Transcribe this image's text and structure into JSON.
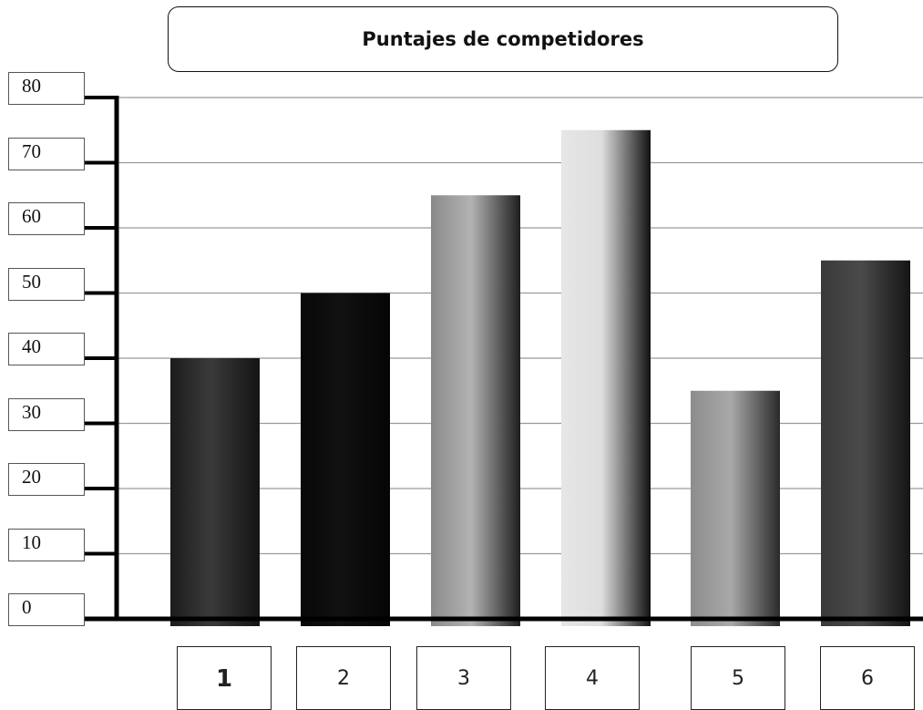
{
  "chart_data": {
    "type": "bar",
    "title": "Puntajes de competidores",
    "categories": [
      "1",
      "2",
      "3",
      "4",
      "5",
      "6"
    ],
    "values": [
      40,
      50,
      65,
      75,
      35,
      55
    ],
    "ylim": [
      0,
      80
    ],
    "yticks": [
      "0",
      "10",
      "20",
      "30",
      "40",
      "50",
      "60",
      "70",
      "80"
    ],
    "grid": true,
    "bar_shades": [
      [
        "#1c1c1c",
        "#3a3a3a",
        "#141414"
      ],
      [
        "#080808",
        "#111111",
        "#050505"
      ],
      [
        "#8a8a8a",
        "#b3b3b3",
        "#1e1e1e"
      ],
      [
        "#e6e6e6",
        "#dedede",
        "#121212"
      ],
      [
        "#8c8c8c",
        "#a9a9a9",
        "#2a2a2a"
      ],
      [
        "#3a3a3a",
        "#4a4a4a",
        "#151515"
      ]
    ]
  }
}
